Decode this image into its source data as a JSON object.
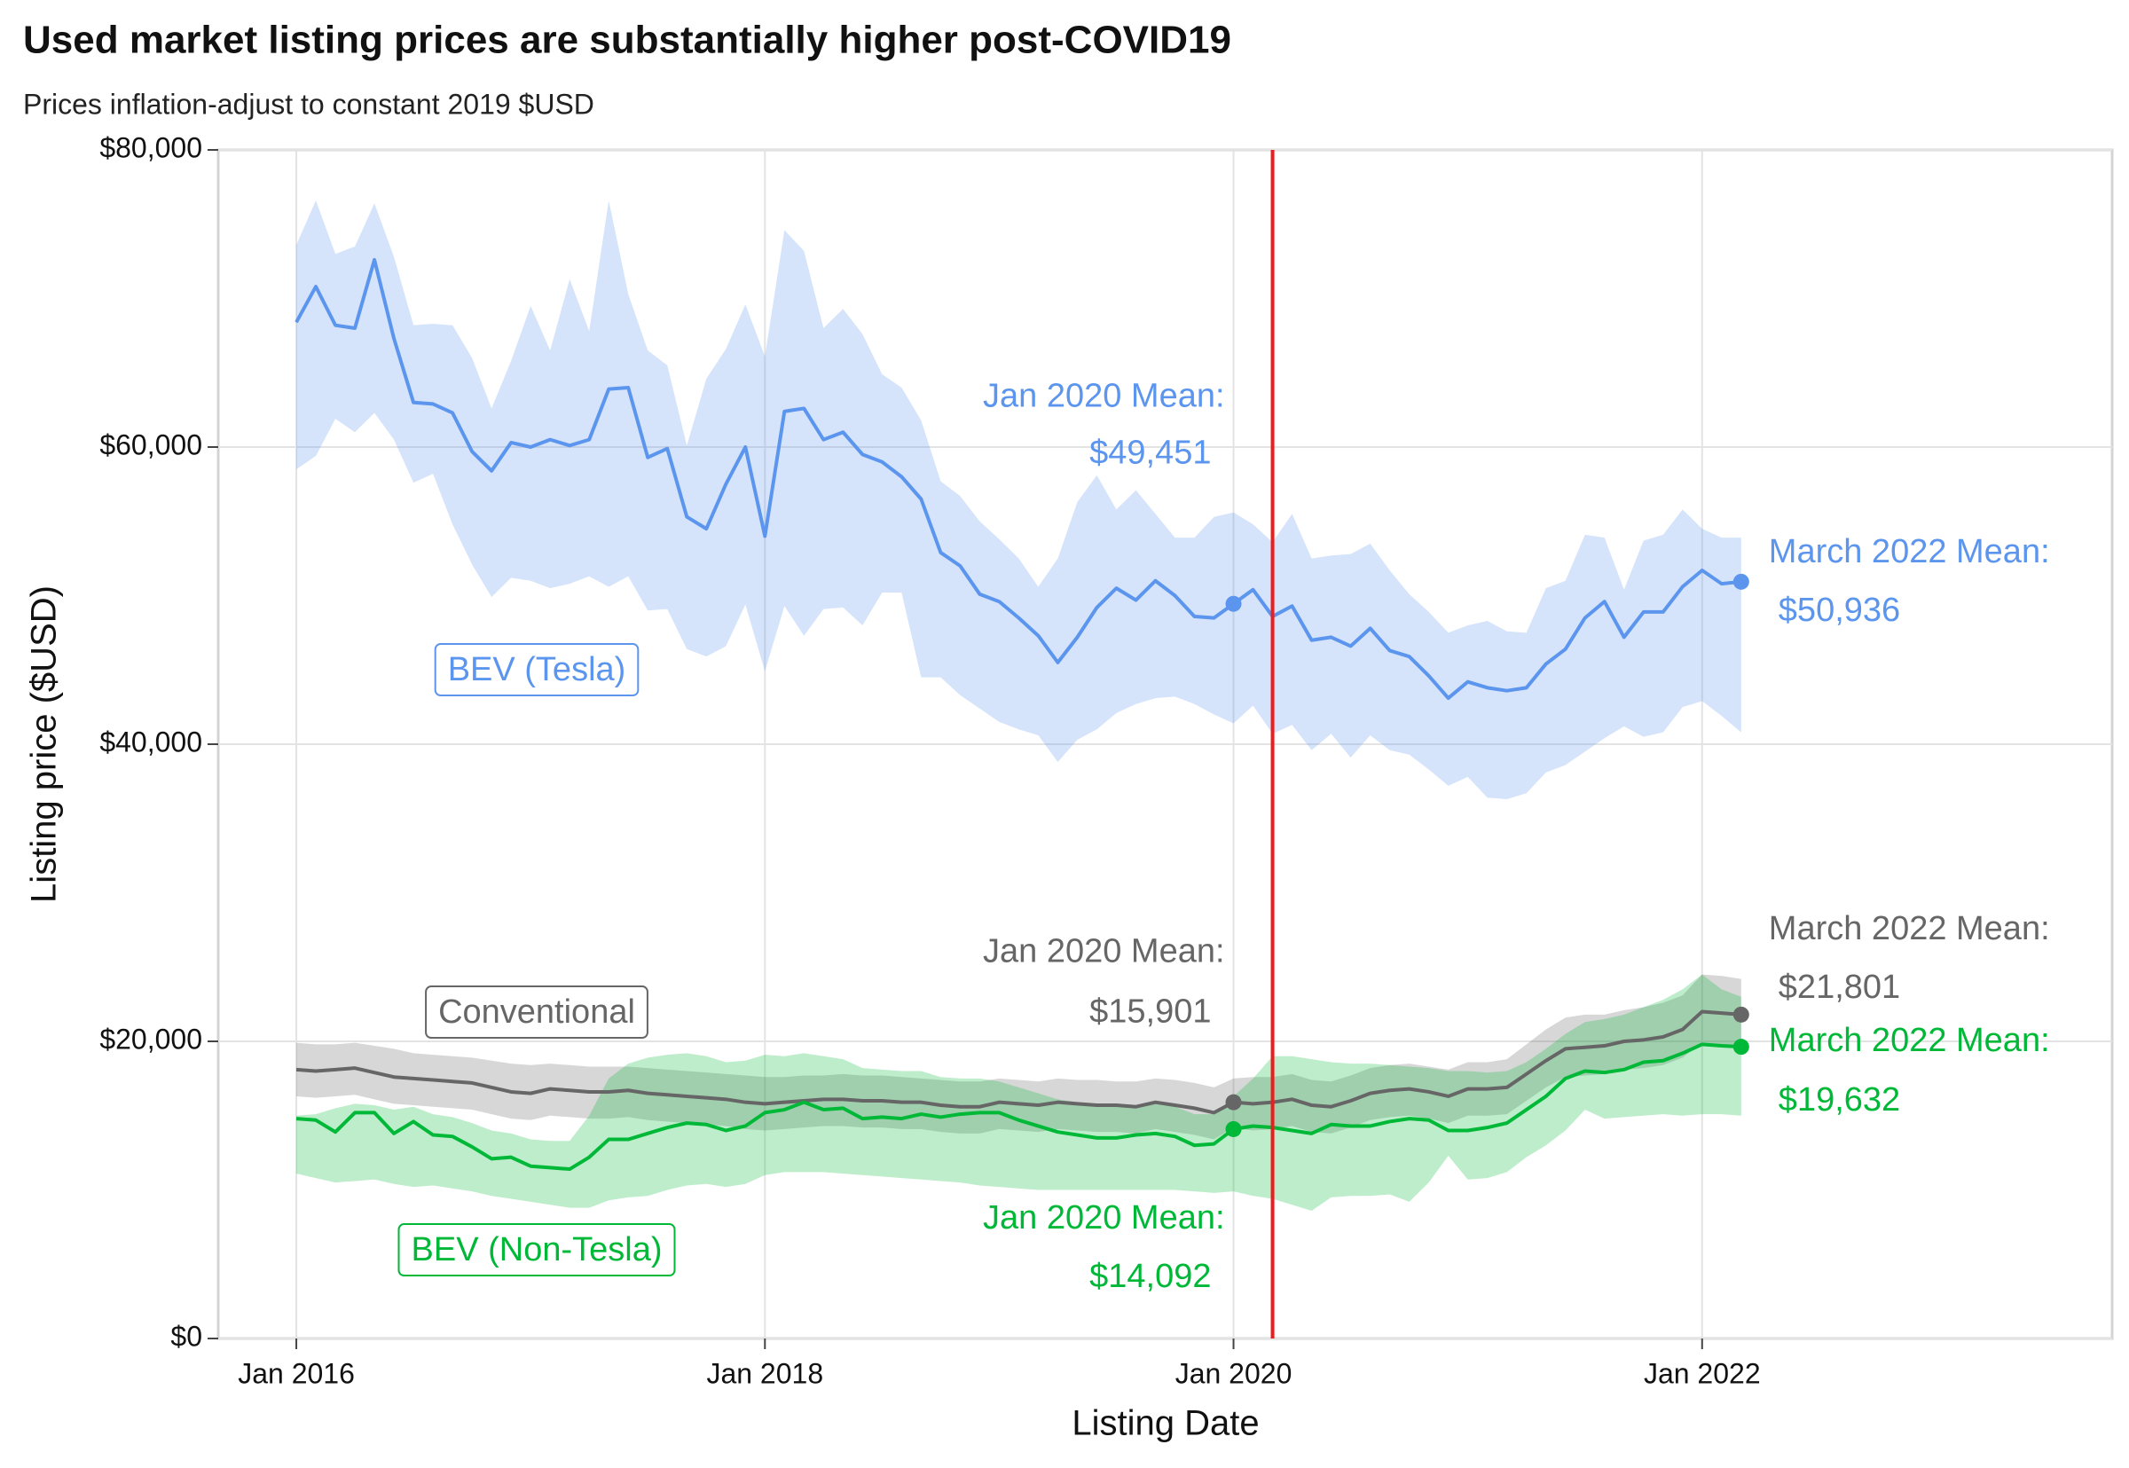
{
  "chart_data": {
    "type": "line",
    "title": "Used market listing prices are substantially higher post-COVID19",
    "subtitle": "Prices inflation-adjust to constant 2019 $USD",
    "x_label": "Listing Date",
    "y_label": "Listing price ($USD)",
    "grid": true,
    "xlim": [
      "2015-09",
      "2023-10"
    ],
    "xticks": [
      {
        "value": "2016-01",
        "label": "Jan 2016"
      },
      {
        "value": "2018-01",
        "label": "Jan 2018"
      },
      {
        "value": "2020-01",
        "label": "Jan 2020"
      },
      {
        "value": "2022-01",
        "label": "Jan 2022"
      }
    ],
    "ylim": [
      0,
      80000
    ],
    "yticks": [
      {
        "value": 0,
        "label": "$0"
      },
      {
        "value": 20000,
        "label": "$20,000"
      },
      {
        "value": 40000,
        "label": "$40,000"
      },
      {
        "value": 60000,
        "label": "$60,000"
      },
      {
        "value": 80000,
        "label": "$80,000"
      }
    ],
    "reference_line": {
      "x": "2020-03",
      "color": "#ee1c1c"
    },
    "x": [
      "2016-01",
      "2016-02",
      "2016-03",
      "2016-04",
      "2016-05",
      "2016-06",
      "2016-07",
      "2016-08",
      "2016-09",
      "2016-10",
      "2016-11",
      "2016-12",
      "2017-01",
      "2017-02",
      "2017-03",
      "2017-04",
      "2017-05",
      "2017-06",
      "2017-07",
      "2017-08",
      "2017-09",
      "2017-10",
      "2017-11",
      "2017-12",
      "2018-01",
      "2018-02",
      "2018-03",
      "2018-04",
      "2018-05",
      "2018-06",
      "2018-07",
      "2018-08",
      "2018-09",
      "2018-10",
      "2018-11",
      "2018-12",
      "2019-01",
      "2019-02",
      "2019-03",
      "2019-04",
      "2019-05",
      "2019-06",
      "2019-07",
      "2019-08",
      "2019-09",
      "2019-10",
      "2019-11",
      "2019-12",
      "2020-01",
      "2020-02",
      "2020-03",
      "2020-04",
      "2020-05",
      "2020-06",
      "2020-07",
      "2020-08",
      "2020-09",
      "2020-10",
      "2020-11",
      "2020-12",
      "2021-01",
      "2021-02",
      "2021-03",
      "2021-04",
      "2021-05",
      "2021-06",
      "2021-07",
      "2021-08",
      "2021-09",
      "2021-10",
      "2021-11",
      "2021-12",
      "2022-01",
      "2022-02",
      "2022-03"
    ],
    "series": [
      {
        "name": "BEV (Tesla)",
        "color": "#5b95ee",
        "values": [
          68400,
          70800,
          68200,
          68000,
          72600,
          67300,
          63000,
          62900,
          62300,
          59700,
          58400,
          60300,
          60000,
          60500,
          60100,
          60500,
          63900,
          64000,
          59300,
          59900,
          55300,
          54500,
          57500,
          60000,
          54000,
          62400,
          62600,
          60500,
          61000,
          59500,
          59000,
          58000,
          56500,
          52900,
          52000,
          50100,
          49600,
          48500,
          47300,
          45500,
          47200,
          49200,
          50500,
          49700,
          51000,
          50000,
          48600,
          48500,
          49451,
          50400,
          48600,
          49300,
          47000,
          47200,
          46600,
          47800,
          46300,
          45900,
          44600,
          43100,
          44200,
          43800,
          43600,
          43800,
          45400,
          46400,
          48500,
          49600,
          47200,
          48900,
          48900,
          50600,
          51700,
          50800,
          50936
        ],
        "upper": [
          73600,
          76600,
          73000,
          73500,
          76400,
          72800,
          68200,
          68300,
          68200,
          66000,
          62600,
          65800,
          69500,
          66500,
          71300,
          67800,
          76600,
          70300,
          66500,
          65500,
          60100,
          64600,
          66600,
          69600,
          66100,
          74600,
          73200,
          68000,
          69300,
          67600,
          64900,
          64000,
          61800,
          57700,
          56700,
          55000,
          53800,
          52500,
          50600,
          52500,
          56300,
          58100,
          55800,
          57100,
          55500,
          53900,
          53900,
          55300,
          55600,
          54800,
          53600,
          55500,
          52500,
          52700,
          52800,
          53500,
          51700,
          50100,
          48900,
          47500,
          48000,
          48300,
          47600,
          47500,
          50500,
          51000,
          54100,
          53900,
          50400,
          53700,
          54100,
          55800,
          54500,
          53900,
          53900
        ],
        "lower": [
          58500,
          59400,
          61900,
          61000,
          62300,
          60500,
          57600,
          58200,
          54800,
          52100,
          49900,
          51200,
          51000,
          50500,
          50800,
          51300,
          50600,
          51300,
          49000,
          49100,
          46400,
          45900,
          46600,
          49400,
          44900,
          49300,
          47300,
          49100,
          49200,
          48000,
          50200,
          50200,
          44500,
          44500,
          43300,
          42400,
          41500,
          41000,
          40600,
          38800,
          40300,
          41000,
          42100,
          42700,
          43100,
          43200,
          42700,
          42000,
          41400,
          42600,
          40700,
          41300,
          39600,
          40700,
          39100,
          40600,
          39600,
          39300,
          38300,
          37200,
          37800,
          36400,
          36300,
          36700,
          38100,
          38600,
          39500,
          40400,
          41200,
          40500,
          40800,
          42500,
          42900,
          41900,
          40800
        ],
        "callouts": [
          {
            "x": "2020-01",
            "value": 49451,
            "title": "Jan 2020 Mean:",
            "value_label": "$49,451"
          },
          {
            "x": "2022-03",
            "value": 50936,
            "title": "March 2022 Mean:",
            "value_label": "$50,936"
          }
        ]
      },
      {
        "name": "Conventional",
        "color": "#666666",
        "values": [
          18100,
          18000,
          18100,
          18200,
          17900,
          17600,
          17500,
          17400,
          17300,
          17200,
          16900,
          16600,
          16500,
          16800,
          16700,
          16600,
          16600,
          16700,
          16500,
          16400,
          16300,
          16200,
          16100,
          15900,
          15800,
          15900,
          16000,
          16100,
          16100,
          16000,
          16000,
          15900,
          15900,
          15700,
          15600,
          15600,
          15900,
          15800,
          15700,
          15900,
          15800,
          15700,
          15700,
          15600,
          15900,
          15700,
          15500,
          15200,
          15901,
          15800,
          15900,
          16100,
          15700,
          15600,
          16000,
          16500,
          16700,
          16800,
          16600,
          16300,
          16800,
          16800,
          16900,
          17800,
          18700,
          19500,
          19600,
          19700,
          20000,
          20100,
          20300,
          20800,
          22000,
          21900,
          21801
        ],
        "upper": [
          19900,
          19800,
          19800,
          19900,
          19700,
          19500,
          19200,
          19100,
          19000,
          18900,
          18700,
          18500,
          18400,
          18500,
          18400,
          18300,
          18300,
          18300,
          18200,
          18100,
          18000,
          17900,
          17800,
          17700,
          17600,
          17600,
          17700,
          17700,
          17800,
          17700,
          17700,
          17600,
          17500,
          17400,
          17300,
          17300,
          17500,
          17400,
          17300,
          17500,
          17400,
          17400,
          17300,
          17300,
          17500,
          17400,
          17200,
          16900,
          17500,
          17600,
          17600,
          17800,
          17400,
          17300,
          17700,
          18200,
          18400,
          18500,
          18300,
          18100,
          18600,
          18600,
          18800,
          19800,
          20800,
          21600,
          21800,
          21800,
          22100,
          22300,
          22600,
          23100,
          24500,
          24400,
          24200
        ],
        "lower": [
          16300,
          16200,
          16300,
          16400,
          16100,
          15800,
          15700,
          15600,
          15500,
          15400,
          15100,
          14800,
          14700,
          15000,
          14900,
          14800,
          14800,
          14900,
          14700,
          14600,
          14500,
          14400,
          14300,
          14100,
          14000,
          14100,
          14200,
          14300,
          14300,
          14200,
          14200,
          14100,
          14100,
          13900,
          13800,
          13800,
          14100,
          14000,
          13900,
          14100,
          14000,
          13900,
          13900,
          13800,
          14100,
          13900,
          13700,
          13400,
          14200,
          14000,
          14100,
          14300,
          13900,
          13800,
          14200,
          14700,
          14900,
          15000,
          14800,
          14500,
          15000,
          15000,
          15100,
          16000,
          16900,
          17600,
          17700,
          17800,
          18100,
          18200,
          18400,
          18900,
          19900,
          19800,
          19600
        ],
        "callouts": [
          {
            "x": "2020-01",
            "value": 15901,
            "title": "Jan 2020 Mean:",
            "value_label": "$15,901"
          },
          {
            "x": "2022-03",
            "value": 21801,
            "title": "March 2022 Mean:",
            "value_label": "$21,801"
          }
        ]
      },
      {
        "name": "BEV (Non-Tesla)",
        "color": "#00b837",
        "values": [
          14800,
          14700,
          13900,
          15200,
          15200,
          13800,
          14600,
          13700,
          13600,
          12900,
          12100,
          12200,
          11600,
          11500,
          11400,
          12200,
          13400,
          13400,
          13800,
          14200,
          14500,
          14400,
          14000,
          14300,
          15200,
          15400,
          15900,
          15400,
          15500,
          14800,
          14900,
          14800,
          15100,
          14900,
          15100,
          15200,
          15200,
          14700,
          14300,
          13900,
          13700,
          13500,
          13500,
          13700,
          13800,
          13600,
          13000,
          13100,
          14092,
          14300,
          14200,
          14000,
          13800,
          14400,
          14300,
          14300,
          14600,
          14800,
          14700,
          14000,
          14000,
          14200,
          14500,
          15400,
          16300,
          17500,
          18000,
          17900,
          18100,
          18600,
          18700,
          19200,
          19800,
          19700,
          19632
        ],
        "upper": [
          15000,
          15100,
          15500,
          15800,
          15700,
          15400,
          15600,
          15100,
          14900,
          14500,
          14000,
          13800,
          13400,
          13300,
          13300,
          15000,
          17500,
          18500,
          18900,
          19100,
          19200,
          19000,
          18600,
          18700,
          19100,
          19000,
          19200,
          19000,
          18800,
          18200,
          18100,
          18000,
          18000,
          17600,
          17500,
          17500,
          17300,
          16900,
          16500,
          16100,
          15900,
          15600,
          15600,
          15700,
          15800,
          15600,
          15100,
          15100,
          16300,
          17500,
          19000,
          19000,
          18800,
          18600,
          18500,
          18500,
          18400,
          18300,
          18200,
          18000,
          18000,
          17900,
          18000,
          18600,
          19500,
          20500,
          21300,
          21500,
          21800,
          22300,
          22800,
          23500,
          24500,
          23500,
          23000
        ],
        "lower": [
          11100,
          10800,
          10500,
          10600,
          10700,
          10400,
          10200,
          10300,
          10100,
          9900,
          9600,
          9400,
          9200,
          9000,
          8800,
          8800,
          9300,
          9500,
          9600,
          10000,
          10300,
          10400,
          10200,
          10400,
          11000,
          11200,
          11200,
          11200,
          11100,
          11000,
          10900,
          10800,
          10700,
          10600,
          10500,
          10300,
          10200,
          10100,
          10000,
          10000,
          10000,
          10000,
          10000,
          10000,
          10000,
          10000,
          9900,
          9800,
          9900,
          9600,
          9400,
          9000,
          8600,
          9500,
          9600,
          9600,
          9700,
          9200,
          10500,
          12300,
          10700,
          10800,
          11200,
          12200,
          13000,
          14000,
          15400,
          14800,
          14900,
          15000,
          15100,
          15000,
          15100,
          15100,
          15000
        ],
        "callouts": [
          {
            "x": "2020-01",
            "value": 14092,
            "title": "Jan 2020 Mean:",
            "value_label": "$14,092"
          },
          {
            "x": "2022-03",
            "value": 19632,
            "title": "March 2022 Mean:",
            "value_label": "$19,632"
          }
        ]
      }
    ]
  }
}
